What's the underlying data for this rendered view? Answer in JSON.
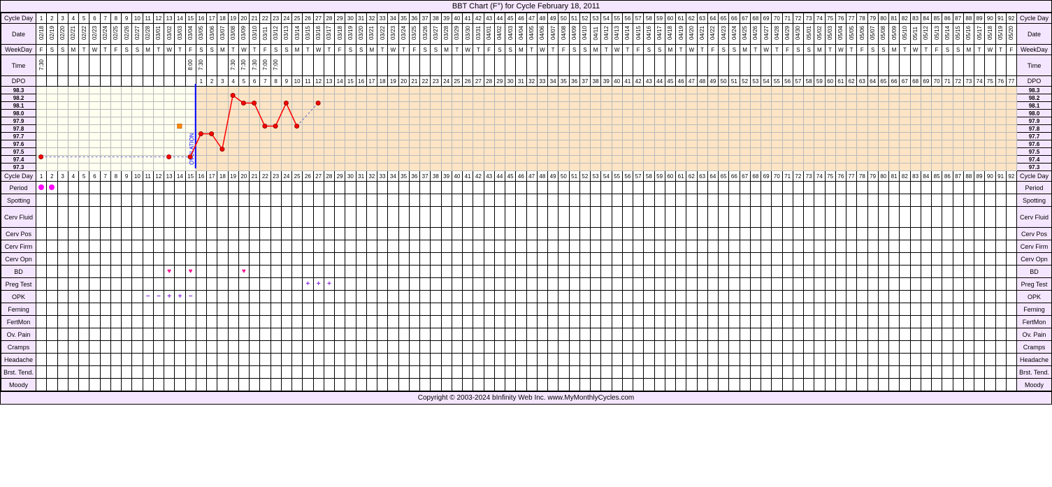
{
  "title": "BBT Chart (F°) for Cycle February 18, 2011",
  "footer": "Copyright © 2003-2024 bInfinity Web Inc.    www.MyMonthlyCycles.com",
  "num_days": 92,
  "ovulation_day": 15,
  "colors": {
    "title_bg": "#f5e6ff",
    "pre_ov_bg": "#fffff0",
    "post_ov_bg": "#fce4c4",
    "ov_line": "#0000ff",
    "temp_line": "#ff0000",
    "temp_dashed": "#6666cc",
    "marker_fill": "#ff0000",
    "marker_stroke": "#990000",
    "period": "#ff00ff",
    "heart": "#ff1493",
    "opk": "#8a2be2",
    "sq": "#ff8c00"
  },
  "row_labels": {
    "cycle_day": "Cycle Day",
    "date": "Date",
    "weekday": "WeekDay",
    "time": "Time",
    "dpo": "DPO",
    "period": "Period",
    "spotting": "Spotting",
    "cerv_fluid": "Cerv Fluid",
    "cerv_pos": "Cerv Pos",
    "cerv_firm": "Cerv Firm",
    "cerv_opn": "Cerv Opn",
    "bd": "BD",
    "preg_test": "Preg Test",
    "opk": "OPK",
    "ferning": "Ferning",
    "fertmon": "FertMon",
    "ov_pain": "Ov. Pain",
    "cramps": "Cramps",
    "headache": "Headache",
    "brst_tend": "Brst. Tend.",
    "moody": "Moody"
  },
  "dates": [
    "02/18",
    "02/19",
    "02/20",
    "02/21",
    "02/22",
    "02/23",
    "02/24",
    "02/25",
    "02/26",
    "02/27",
    "02/28",
    "03/01",
    "03/02",
    "03/03",
    "03/04",
    "03/05",
    "03/06",
    "03/07",
    "03/08",
    "03/09",
    "03/10",
    "03/11",
    "03/12",
    "03/13",
    "03/14",
    "03/15",
    "03/16",
    "03/17",
    "03/18",
    "03/19",
    "03/20",
    "03/21",
    "03/22",
    "03/23",
    "03/24",
    "03/25",
    "03/26",
    "03/27",
    "03/28",
    "03/29",
    "03/30",
    "03/31",
    "04/01",
    "04/02",
    "04/03",
    "04/04",
    "04/05",
    "04/06",
    "04/07",
    "04/08",
    "04/09",
    "04/10",
    "04/11",
    "04/12",
    "04/13",
    "04/14",
    "04/15",
    "04/16",
    "04/17",
    "04/18",
    "04/19",
    "04/20",
    "04/21",
    "04/22",
    "04/23",
    "04/24",
    "04/25",
    "04/26",
    "04/27",
    "04/28",
    "04/29",
    "04/30",
    "05/01",
    "05/02",
    "05/03",
    "05/04",
    "05/05",
    "05/06",
    "05/07",
    "05/08",
    "05/09",
    "05/10",
    "05/11",
    "05/12",
    "05/13",
    "05/14",
    "05/15",
    "05/16",
    "05/17",
    "05/18",
    "05/19",
    "05/20"
  ],
  "weekdays": [
    "F",
    "S",
    "S",
    "M",
    "T",
    "W",
    "T",
    "F",
    "S",
    "S",
    "M",
    "T",
    "W",
    "T",
    "F",
    "S",
    "S",
    "M",
    "T",
    "W",
    "T",
    "F",
    "S",
    "S",
    "M",
    "T",
    "W",
    "T",
    "F",
    "S",
    "S",
    "M",
    "T",
    "W",
    "T",
    "F",
    "S",
    "S",
    "M",
    "T",
    "W",
    "T",
    "F",
    "S",
    "S",
    "M",
    "T",
    "W",
    "T",
    "F",
    "S",
    "S",
    "M",
    "T",
    "W",
    "T",
    "F",
    "S",
    "S",
    "M",
    "T",
    "W",
    "T",
    "F",
    "S",
    "S",
    "M",
    "T",
    "W",
    "T",
    "F",
    "S",
    "S",
    "M",
    "T",
    "W",
    "T",
    "F",
    "S",
    "S",
    "M",
    "T",
    "W",
    "T",
    "F",
    "S",
    "S",
    "M",
    "T",
    "W",
    "T",
    "F"
  ],
  "times": {
    "1": "7:30",
    "15": "8:00",
    "16": "7:30",
    "19": "7:30",
    "20": "7:30",
    "21": "7:30",
    "22": "7:00",
    "23": "7:00"
  },
  "dpo_start": 16,
  "temp_scale": [
    "98.3",
    "98.2",
    "98.1",
    "98.0",
    "97.9",
    "97.8",
    "97.7",
    "97.6",
    "97.5",
    "97.4",
    "97.3"
  ],
  "temp_min": 97.3,
  "temp_max": 98.3,
  "temp_points": [
    {
      "day": 1,
      "t": 97.4
    },
    {
      "day": 13,
      "t": 97.4
    },
    {
      "day": 15,
      "t": 97.4
    },
    {
      "day": 16,
      "t": 97.7
    },
    {
      "day": 17,
      "t": 97.7
    },
    {
      "day": 18,
      "t": 97.5
    },
    {
      "day": 19,
      "t": 98.2
    },
    {
      "day": 20,
      "t": 98.1
    },
    {
      "day": 21,
      "t": 98.1
    },
    {
      "day": 22,
      "t": 97.8
    },
    {
      "day": 23,
      "t": 97.8
    },
    {
      "day": 24,
      "t": 98.1
    },
    {
      "day": 25,
      "t": 97.8
    },
    {
      "day": 27,
      "t": 98.1
    }
  ],
  "dashed_segments": [
    [
      1,
      13
    ],
    [
      13,
      15
    ],
    [
      25,
      27
    ]
  ],
  "solid_start": 15,
  "solid_end": 25,
  "square_marker_day": 14,
  "square_marker_temp": 97.8,
  "period_days": [
    1,
    2
  ],
  "bd_days": [
    13,
    15,
    20
  ],
  "preg_test_days": {
    "26": "+",
    "27": "+",
    "28": "+"
  },
  "opk_days": {
    "11": "−",
    "12": "−",
    "13": "+",
    "14": "+",
    "15": "−"
  },
  "ovulation_label": "OVULATION"
}
